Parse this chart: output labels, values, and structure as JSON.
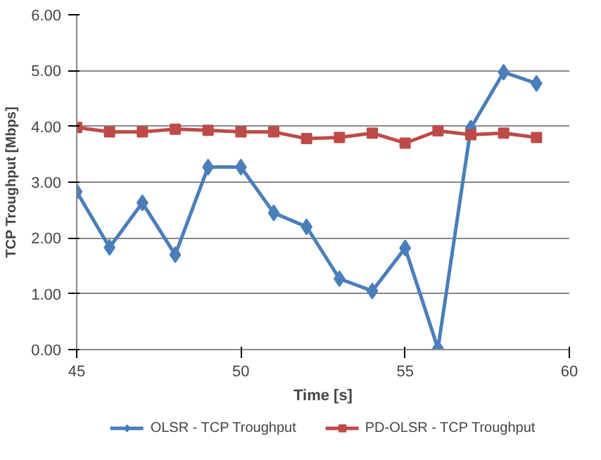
{
  "chart_data": {
    "type": "line",
    "xlabel": "Time [s]",
    "ylabel": "TCP Troughput [Mbps]",
    "x": [
      45,
      46,
      47,
      48,
      49,
      50,
      51,
      52,
      53,
      54,
      55,
      56,
      57,
      58,
      59
    ],
    "series": [
      {
        "name": "OLSR - TCP Troughput",
        "color": "#4a7ebb",
        "marker": "diamond",
        "values": [
          2.83,
          1.83,
          2.63,
          1.7,
          3.27,
          3.27,
          2.45,
          2.2,
          1.27,
          1.05,
          1.82,
          0.02,
          3.97,
          4.97,
          4.77
        ]
      },
      {
        "name": "PD-OLSR - TCP Troughput",
        "color": "#be4b48",
        "marker": "square",
        "values": [
          3.98,
          3.9,
          3.9,
          3.95,
          3.93,
          3.9,
          3.9,
          3.78,
          3.8,
          3.88,
          3.7,
          3.92,
          3.85,
          3.88,
          3.8
        ]
      }
    ],
    "xlim": [
      45,
      60
    ],
    "xticks": [
      45,
      50,
      55,
      60
    ],
    "ylim": [
      0,
      6
    ],
    "yticks": [
      {
        "value": 0,
        "label": "0.00"
      },
      {
        "value": 1,
        "label": "1.00"
      },
      {
        "value": 2,
        "label": "2.00"
      },
      {
        "value": 3,
        "label": "3.00"
      },
      {
        "value": 4,
        "label": "4.00"
      },
      {
        "value": 5,
        "label": "5.00"
      },
      {
        "value": 6,
        "label": "6.00"
      }
    ],
    "grid": "y",
    "legend": "bottom",
    "line_style": "solid"
  }
}
